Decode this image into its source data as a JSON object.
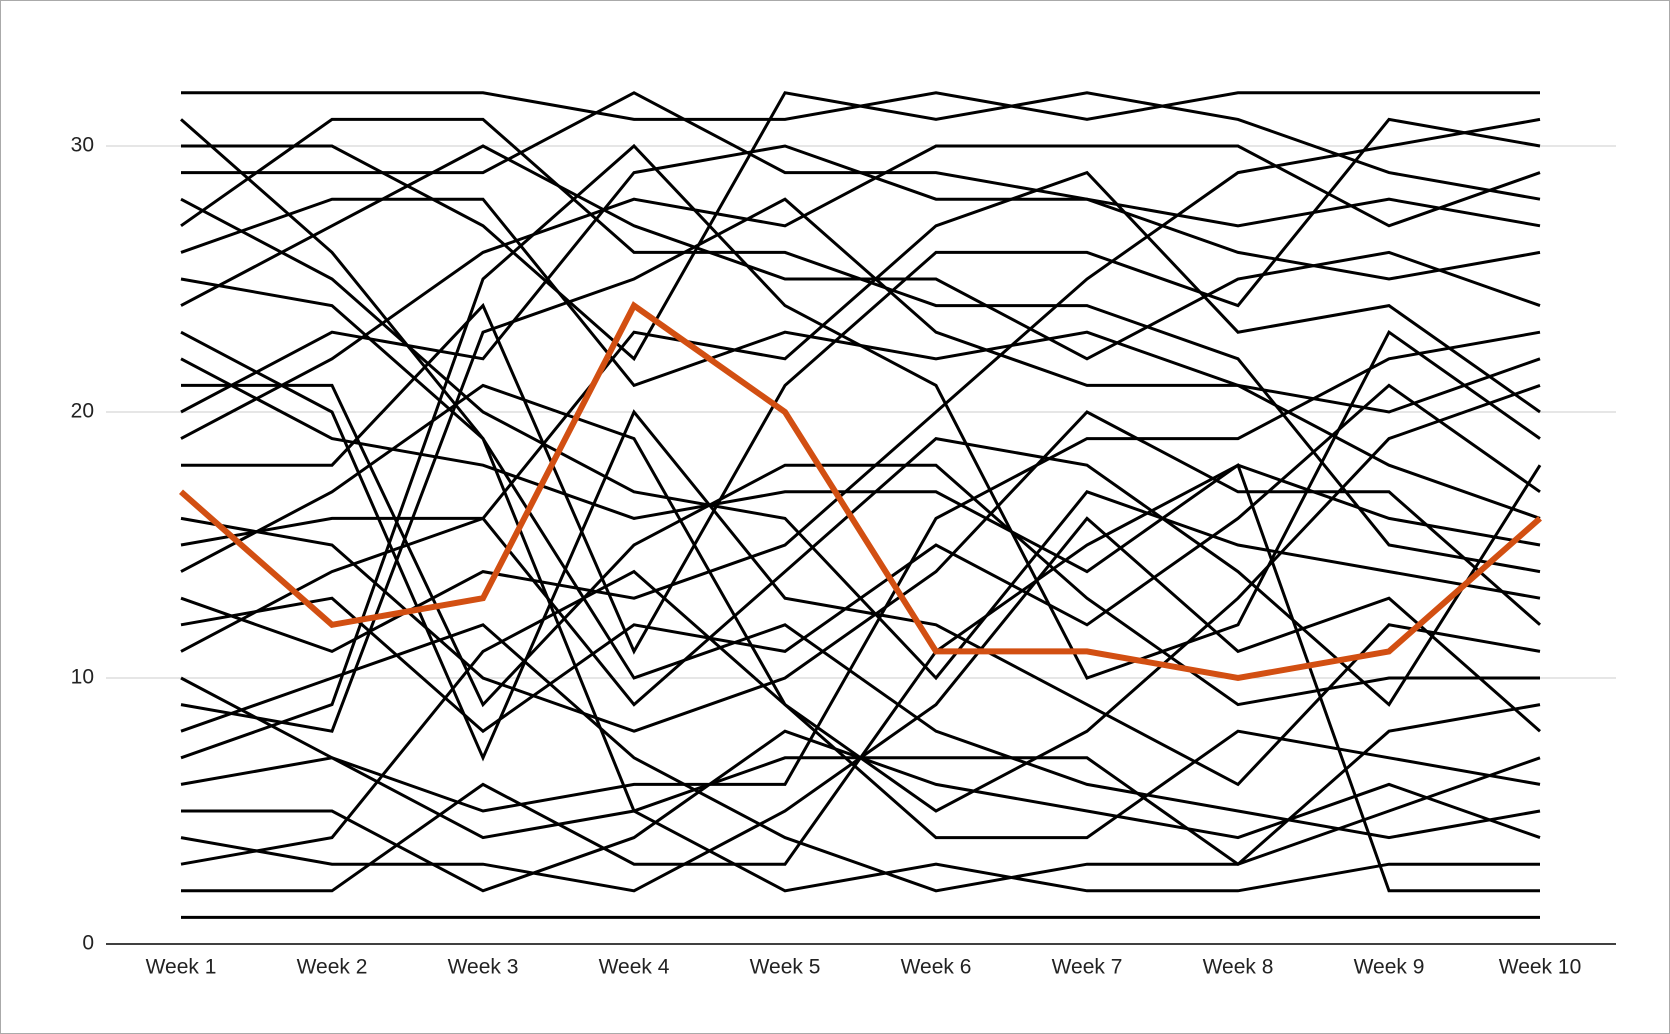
{
  "chart_data": {
    "type": "line",
    "categories": [
      "Week 1",
      "Week 2",
      "Week 3",
      "Week 4",
      "Week 5",
      "Week 6",
      "Week 7",
      "Week 8",
      "Week 9",
      "Week 10"
    ],
    "ylim": [
      0,
      35
    ],
    "yticks": [
      0,
      10,
      20,
      30
    ],
    "grid": true,
    "series": [
      {
        "color": "#000000",
        "values": [
          32,
          32,
          32,
          31,
          31,
          32,
          31,
          32,
          32,
          32
        ]
      },
      {
        "color": "#000000",
        "values": [
          31,
          26,
          19,
          10,
          12,
          8,
          6,
          5,
          4,
          5
        ]
      },
      {
        "color": "#000000",
        "values": [
          30,
          30,
          27,
          22,
          32,
          31,
          32,
          31,
          29,
          28
        ]
      },
      {
        "color": "#000000",
        "values": [
          29,
          29,
          29,
          32,
          29,
          29,
          28,
          27,
          28,
          27
        ]
      },
      {
        "color": "#000000",
        "values": [
          28,
          25,
          20,
          17,
          16,
          10,
          17,
          15,
          14,
          13
        ]
      },
      {
        "color": "#000000",
        "values": [
          27,
          31,
          31,
          26,
          26,
          24,
          24,
          22,
          15,
          14
        ]
      },
      {
        "color": "#000000",
        "values": [
          26,
          28,
          28,
          21,
          23,
          22,
          23,
          21,
          20,
          22
        ]
      },
      {
        "color": "#000000",
        "values": [
          25,
          24,
          19,
          5,
          2,
          3,
          2,
          2,
          3,
          3
        ]
      },
      {
        "color": "#000000",
        "values": [
          24,
          27,
          30,
          27,
          25,
          25,
          22,
          25,
          26,
          24
        ]
      },
      {
        "color": "#000000",
        "values": [
          23,
          20,
          7,
          20,
          13,
          12,
          9,
          6,
          12,
          11
        ]
      },
      {
        "color": "#000000",
        "values": [
          22,
          19,
          18,
          16,
          17,
          17,
          14,
          18,
          16,
          15
        ]
      },
      {
        "color": "#000000",
        "values": [
          21,
          21,
          9,
          15,
          18,
          18,
          13,
          9,
          10,
          10
        ]
      },
      {
        "color": "#000000",
        "values": [
          20,
          23,
          22,
          29,
          30,
          28,
          28,
          26,
          25,
          26
        ]
      },
      {
        "color": "#000000",
        "values": [
          19,
          22,
          26,
          28,
          27,
          30,
          30,
          30,
          27,
          29
        ]
      },
      {
        "color": "#000000",
        "values": [
          18,
          18,
          24,
          11,
          21,
          26,
          26,
          24,
          31,
          30
        ]
      },
      {
        "color": "#000000",
        "values": [
          16,
          15,
          10,
          8,
          10,
          14,
          20,
          17,
          17,
          12
        ]
      },
      {
        "color": "#000000",
        "values": [
          15,
          16,
          16,
          9,
          14,
          19,
          18,
          14,
          9,
          18
        ]
      },
      {
        "color": "#000000",
        "values": [
          14,
          17,
          21,
          19,
          9,
          5,
          8,
          13,
          19,
          21
        ]
      },
      {
        "color": "#000000",
        "values": [
          13,
          11,
          14,
          13,
          15,
          20,
          25,
          29,
          30,
          31
        ]
      },
      {
        "color": "#000000",
        "values": [
          12,
          13,
          8,
          12,
          11,
          15,
          12,
          16,
          21,
          17
        ]
      },
      {
        "color": "#000000",
        "values": [
          11,
          14,
          16,
          23,
          22,
          27,
          29,
          23,
          24,
          20
        ]
      },
      {
        "color": "#000000",
        "values": [
          10,
          7,
          5,
          6,
          6,
          16,
          19,
          19,
          22,
          23
        ]
      },
      {
        "color": "#000000",
        "values": [
          9,
          8,
          23,
          25,
          28,
          23,
          21,
          21,
          18,
          16
        ]
      },
      {
        "color": "#000000",
        "values": [
          8,
          10,
          12,
          7,
          4,
          2,
          3,
          3,
          8,
          9
        ]
      },
      {
        "color": "#000000",
        "values": [
          7,
          9,
          25,
          30,
          24,
          21,
          10,
          12,
          23,
          19
        ]
      },
      {
        "color": "#000000",
        "values": [
          6,
          7,
          4,
          5,
          7,
          7,
          7,
          3,
          5,
          7
        ]
      },
      {
        "color": "#000000",
        "values": [
          5,
          5,
          2,
          4,
          8,
          6,
          5,
          4,
          6,
          4
        ]
      },
      {
        "color": "#000000",
        "values": [
          4,
          3,
          3,
          2,
          5,
          9,
          16,
          11,
          13,
          8
        ]
      },
      {
        "color": "#000000",
        "values": [
          3,
          4,
          11,
          14,
          9,
          4,
          4,
          8,
          7,
          6
        ]
      },
      {
        "color": "#000000",
        "values": [
          2,
          2,
          6,
          3,
          3,
          11,
          15,
          18,
          2,
          2
        ]
      },
      {
        "color": "#000000",
        "values": [
          1,
          1,
          1,
          1,
          1,
          1,
          1,
          1,
          1,
          1
        ]
      },
      {
        "color": "#d24f12",
        "values": [
          17,
          12,
          13,
          24,
          20,
          11,
          11,
          10,
          11,
          16
        ]
      }
    ]
  }
}
